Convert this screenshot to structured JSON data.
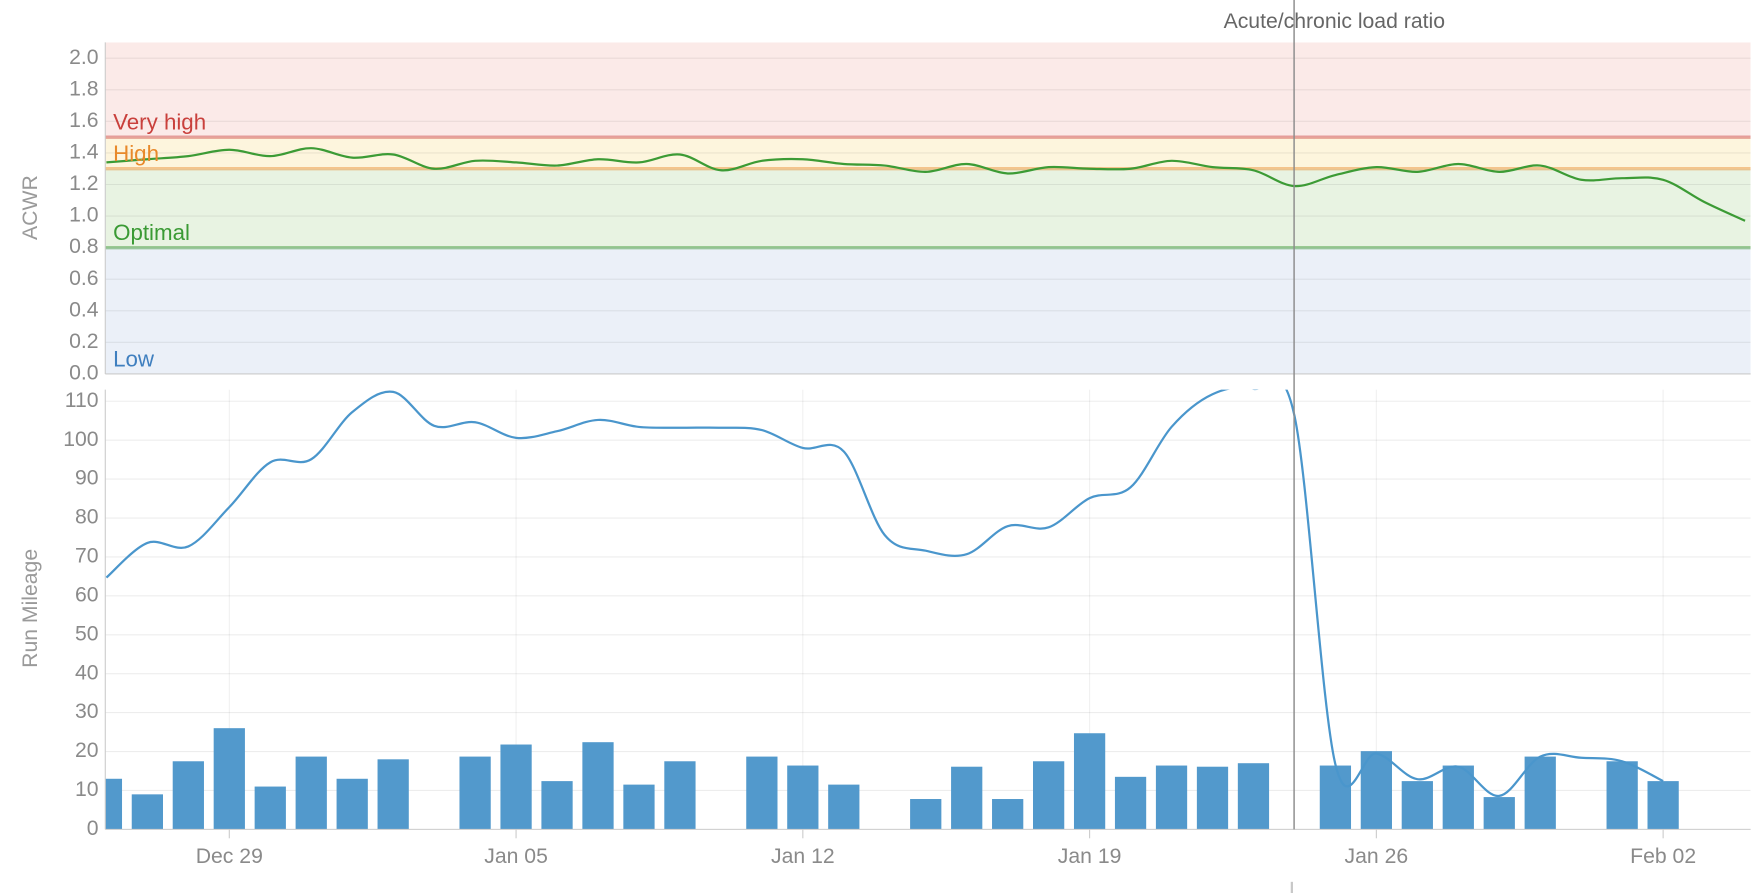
{
  "annotation": "Acute/chronic load ratio",
  "chart_data": [
    {
      "type": "line",
      "ylabel": "ACWR",
      "ylim": [
        0,
        2.1
      ],
      "yticks": [
        {
          "value": 0,
          "label": "0.0"
        },
        0.2,
        0.4,
        0.6,
        0.8,
        {
          "value": 1,
          "label": "1.0"
        },
        1.2,
        1.4,
        1.6,
        1.8,
        {
          "value": 2,
          "label": "2.0"
        }
      ],
      "grid": true,
      "bands": [
        {
          "name": "Low",
          "from": 0,
          "to": 0.8,
          "color": "#3f7fbf",
          "fill": "#ebf0f8"
        },
        {
          "name": "Optimal",
          "from": 0.8,
          "to": 1.3,
          "color": "#3a9a34",
          "fill": "#e8f3e2"
        },
        {
          "name": "High",
          "from": 1.3,
          "to": 1.5,
          "color": "#e8892a",
          "fill": "#fdf5dd"
        },
        {
          "name": "Very high",
          "from": 1.5,
          "to": 2.1,
          "color": "#c9403c",
          "fill": "#fbeae8"
        }
      ],
      "series": [
        {
          "type": "line",
          "color": "#3c9b35",
          "values": [
            1.34,
            1.36,
            1.38,
            1.42,
            1.38,
            1.43,
            1.37,
            1.39,
            1.3,
            1.35,
            1.34,
            1.32,
            1.36,
            1.34,
            1.39,
            1.29,
            1.35,
            1.36,
            1.33,
            1.32,
            1.28,
            1.33,
            1.27,
            1.31,
            1.3,
            1.3,
            1.35,
            1.31,
            1.29,
            1.19,
            1.26,
            1.31,
            1.28,
            1.33,
            1.28,
            1.32,
            1.23,
            1.24,
            1.23,
            1.09,
            0.97
          ]
        }
      ]
    },
    {
      "type": "bar",
      "ylabel": "Run Mileage",
      "categories": [
        null,
        null,
        null,
        "Dec 29",
        null,
        null,
        null,
        null,
        null,
        null,
        "Jan 05",
        null,
        null,
        null,
        null,
        null,
        null,
        "Jan 12",
        null,
        null,
        null,
        null,
        null,
        null,
        "Jan 19",
        null,
        null,
        null,
        null,
        null,
        null,
        "Jan 26",
        null,
        null,
        null,
        null,
        null,
        null,
        "Feb 02",
        null,
        null
      ],
      "ylim": [
        0,
        113
      ],
      "yticks": [
        0,
        10,
        20,
        30,
        40,
        50,
        60,
        70,
        80,
        90,
        100,
        110
      ],
      "grid": true,
      "series": [
        {
          "type": "bar",
          "color": "#5299cc",
          "values": [
            13,
            9,
            17.5,
            26,
            11,
            18.7,
            13,
            18,
            null,
            18.7,
            21.8,
            12.4,
            22.4,
            11.5,
            17.5,
            null,
            18.7,
            16.4,
            11.5,
            null,
            7.8,
            16.1,
            7.8,
            17.5,
            24.7,
            13.5,
            16.4,
            16.1,
            17,
            null,
            16.4,
            20.1,
            12.4,
            16.4,
            8.3,
            18.7,
            null,
            17.5,
            12.4,
            null,
            null
          ]
        },
        {
          "type": "line",
          "color": "#4a96cc",
          "values": [
            64.7,
            73.6,
            72.7,
            82.8,
            94.3,
            95.1,
            107.2,
            112.4,
            103.7,
            104.6,
            100.6,
            102.3,
            105.2,
            103.4,
            103.2,
            103.2,
            102.6,
            98,
            97.1,
            75.6,
            71.6,
            70.7,
            77.9,
            77.6,
            85.1,
            87.9,
            103.4,
            111.8,
            113.2,
            106.3,
            16.7,
            19.5,
            12.9,
            16.1,
            8.6,
            18.7,
            18.4,
            17.5,
            12.4,
            null,
            null
          ]
        }
      ]
    }
  ]
}
